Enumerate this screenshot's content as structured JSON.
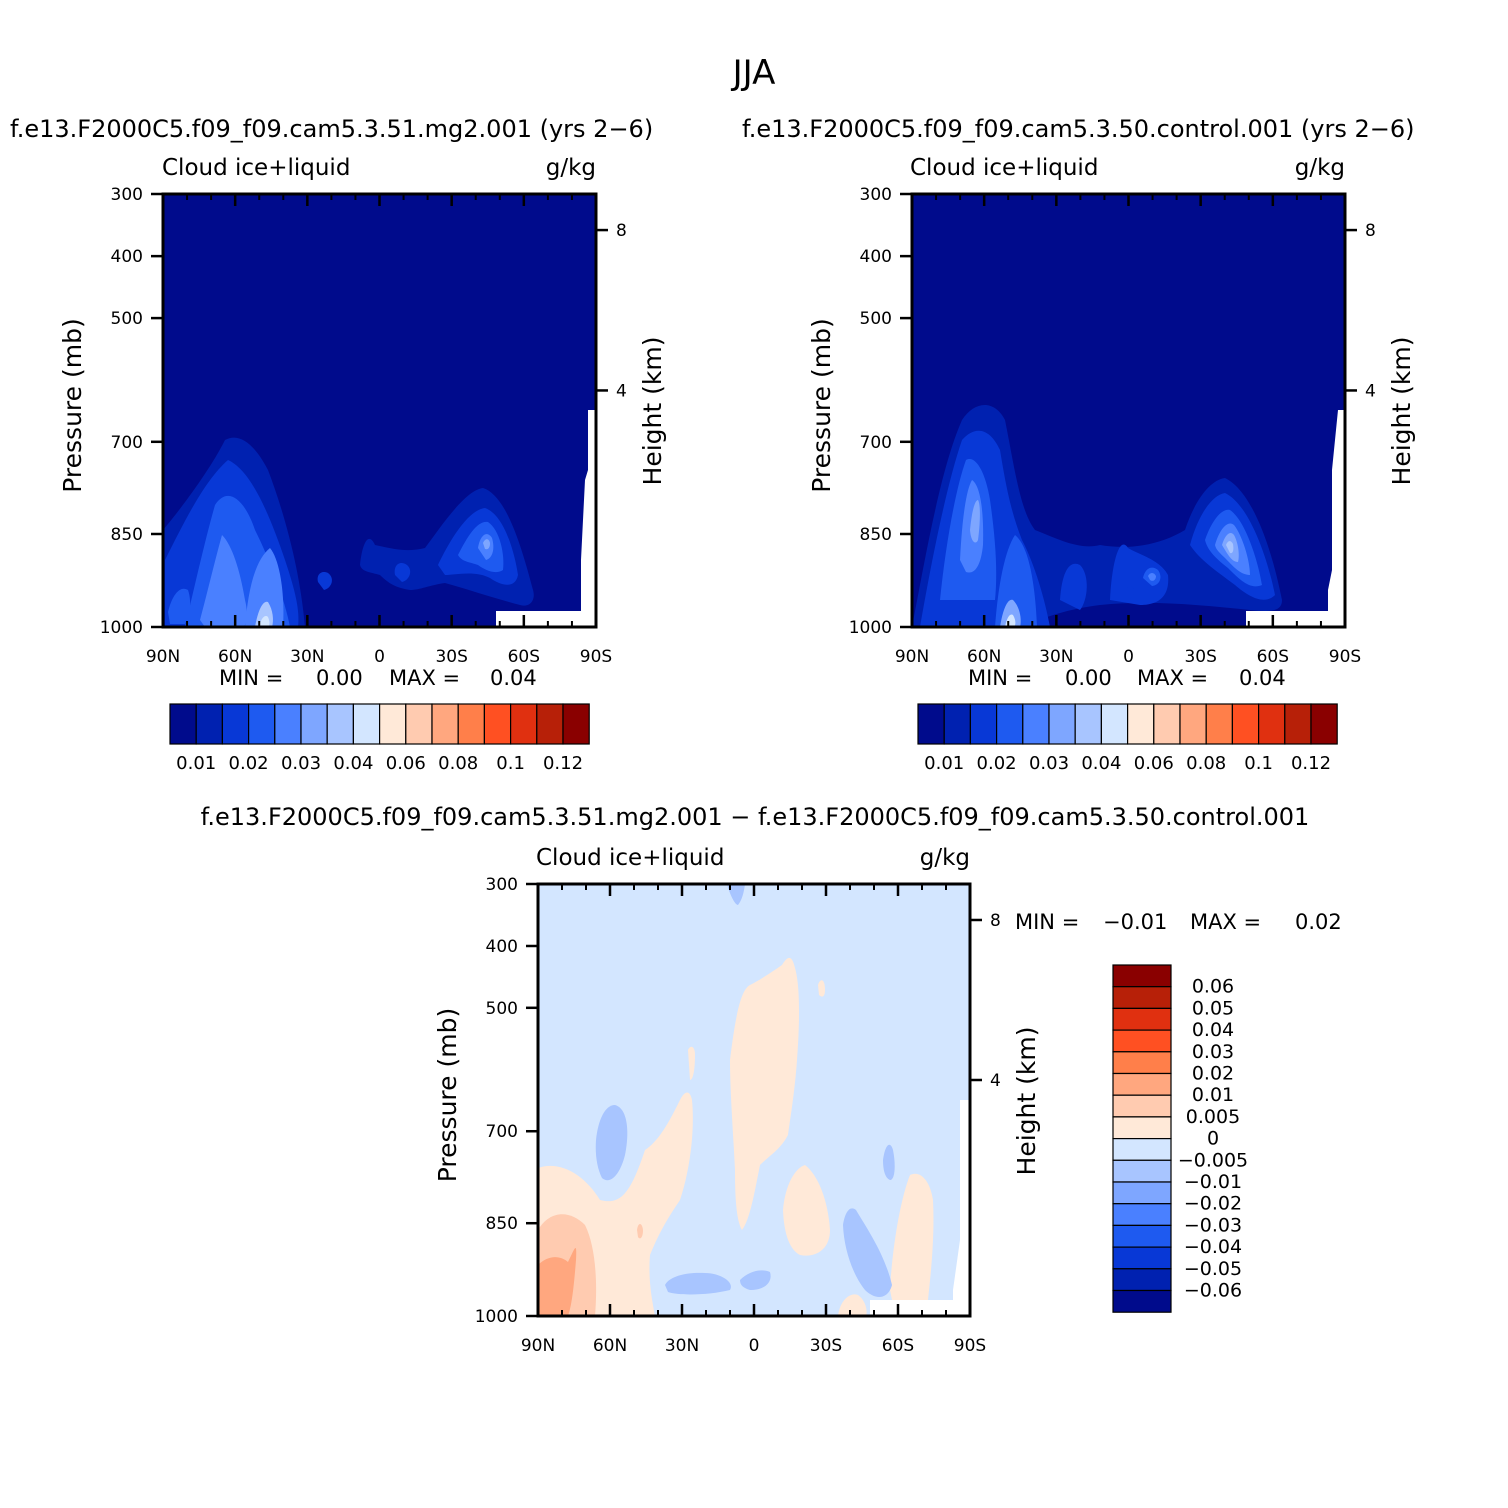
{
  "figure": {
    "title": "JJA",
    "case1": "f.e13.F2000C5.f09_f09.cam5.3.51.mg2.001  (yrs  2-6)",
    "case2": "f.e13.F2000C5.f09_f09.cam5.3.50.control.001  (yrs  2-6)",
    "diff_title": "f.e13.F2000C5.f09_f09.cam5.3.51.mg2.001  -  f.e13.F2000C5.f09_f09.cam5.3.50.control.001"
  },
  "colors": {
    "abs_scale": [
      "#000b8c",
      "#0021b0",
      "#0838d6",
      "#1e5af0",
      "#4a80ff",
      "#7ea6ff",
      "#a8c5ff",
      "#d3e6ff",
      "#ffe9d8",
      "#ffcbb0",
      "#ffa77f",
      "#ff7f4a",
      "#ff5022",
      "#e03010",
      "#b72008",
      "#8a0000"
    ],
    "diff_scale": [
      "#8a0000",
      "#b72008",
      "#e03010",
      "#ff5022",
      "#ff7f4a",
      "#ffa77f",
      "#ffcbb0",
      "#ffe9d8",
      "#d3e6ff",
      "#a8c5ff",
      "#7ea6ff",
      "#4a80ff",
      "#1e5af0",
      "#0838d6",
      "#0021b0",
      "#000b8c"
    ]
  },
  "chart_data": [
    {
      "type": "heatmap",
      "title": "f.e13.F2000C5.f09_f09.cam5.3.51.mg2.001  (yrs  2-6)",
      "variable": "Cloud  ice+liquid",
      "units": "g/kg",
      "ylabel": "Pressure  (mb)",
      "ylabel_right": "Height  (km)",
      "x_ticks": [
        "90N",
        "60N",
        "30N",
        "0",
        "30S",
        "60S",
        "90S"
      ],
      "y_ticks": [
        "300",
        "400",
        "500",
        "700",
        "850",
        "1000"
      ],
      "y2_ticks": [
        "8",
        "4"
      ],
      "ylim": [
        1000,
        300
      ],
      "min_label": "MIN  =",
      "min": "0.00",
      "max_label": "MAX  =",
      "max": "0.04",
      "colorbar_labels": [
        "0.01",
        "0.02",
        "0.03",
        "0.04",
        "0.06",
        "0.08",
        "0.1",
        "0.12"
      ]
    },
    {
      "type": "heatmap",
      "title": "f.e13.F2000C5.f09_f09.cam5.3.50.control.001  (yrs  2-6)",
      "variable": "Cloud  ice+liquid",
      "units": "g/kg",
      "ylabel": "Pressure  (mb)",
      "ylabel_right": "Height  (km)",
      "x_ticks": [
        "90N",
        "60N",
        "30N",
        "0",
        "30S",
        "60S",
        "90S"
      ],
      "y_ticks": [
        "300",
        "400",
        "500",
        "700",
        "850",
        "1000"
      ],
      "y2_ticks": [
        "8",
        "4"
      ],
      "ylim": [
        1000,
        300
      ],
      "min_label": "MIN  =",
      "min": "0.00",
      "max_label": "MAX  =",
      "max": "0.04",
      "colorbar_labels": [
        "0.01",
        "0.02",
        "0.03",
        "0.04",
        "0.06",
        "0.08",
        "0.1",
        "0.12"
      ]
    },
    {
      "type": "heatmap",
      "title": "f.e13.F2000C5.f09_f09.cam5.3.51.mg2.001  -  f.e13.F2000C5.f09_f09.cam5.3.50.control.001",
      "variable": "Cloud  ice+liquid",
      "units": "g/kg",
      "ylabel": "Pressure  (mb)",
      "ylabel_right": "Height  (km)",
      "x_ticks": [
        "90N",
        "60N",
        "30N",
        "0",
        "30S",
        "60S",
        "90S"
      ],
      "y_ticks": [
        "300",
        "400",
        "500",
        "700",
        "850",
        "1000"
      ],
      "y2_ticks": [
        "8",
        "4"
      ],
      "ylim": [
        1000,
        300
      ],
      "min_label": "MIN  =",
      "min": "-0.01",
      "max_label": "MAX  =",
      "max": "0.02",
      "colorbar_labels": [
        "0.06",
        "0.05",
        "0.04",
        "0.03",
        "0.02",
        "0.01",
        "0.005",
        "0",
        "-0.005",
        "-0.01",
        "-0.02",
        "-0.03",
        "-0.04",
        "-0.05",
        "-0.06"
      ]
    }
  ]
}
